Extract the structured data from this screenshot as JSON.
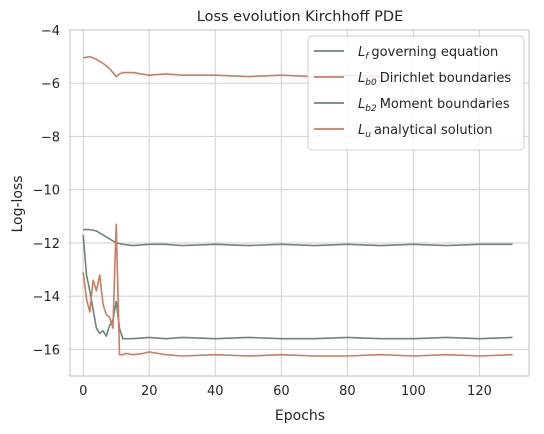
{
  "chart_data": {
    "type": "line",
    "title": "Loss evolution Kirchhoff PDE",
    "xlabel": "Epochs",
    "ylabel": "Log-loss",
    "xlim": [
      -4,
      135
    ],
    "ylim": [
      -17,
      -4
    ],
    "xticks": [
      0,
      20,
      40,
      60,
      80,
      100,
      120
    ],
    "yticks": [
      -16,
      -14,
      -12,
      -10,
      -8,
      -6,
      -4
    ],
    "xtick_labels": [
      "0",
      "20",
      "40",
      "60",
      "80",
      "100",
      "120"
    ],
    "ytick_labels": [
      "−16",
      "−14",
      "−12",
      "−10",
      "−8",
      "−6",
      "−4"
    ],
    "grid": true,
    "legend_position": "top-right",
    "series": [
      {
        "name": "governing equation",
        "legend_symbol": "L",
        "legend_sub": "f",
        "color": "#6b8778",
        "x": [
          0,
          2,
          4,
          6,
          8,
          10,
          12,
          15,
          20,
          25,
          30,
          40,
          50,
          60,
          70,
          80,
          90,
          100,
          110,
          120,
          130
        ],
        "values": [
          -11.5,
          -11.5,
          -11.55,
          -11.7,
          -11.85,
          -12.0,
          -12.05,
          -12.1,
          -12.05,
          -12.05,
          -12.1,
          -12.05,
          -12.1,
          -12.05,
          -12.1,
          -12.05,
          -12.1,
          -12.05,
          -12.1,
          -12.05,
          -12.05
        ]
      },
      {
        "name": "Dirichlet boundaries",
        "legend_symbol": "L",
        "legend_sub": "b0",
        "color": "#cf7b5f",
        "x": [
          0,
          2,
          4,
          6,
          8,
          9,
          10,
          11,
          12,
          15,
          20,
          25,
          30,
          40,
          50,
          60,
          70,
          80,
          90,
          100,
          110,
          120,
          130
        ],
        "values": [
          -5.05,
          -5.0,
          -5.1,
          -5.25,
          -5.45,
          -5.6,
          -5.75,
          -5.65,
          -5.6,
          -5.6,
          -5.7,
          -5.65,
          -5.7,
          -5.7,
          -5.75,
          -5.7,
          -5.75,
          -5.7,
          -5.75,
          -5.7,
          -5.75,
          -5.7,
          -5.75
        ]
      },
      {
        "name": "Moment boundaries",
        "legend_symbol": "L",
        "legend_sub": "b2",
        "color": "#6b8778",
        "x": [
          0,
          1,
          2,
          3,
          4,
          5,
          6,
          7,
          8,
          9,
          10,
          11,
          12,
          13,
          15,
          20,
          25,
          30,
          40,
          50,
          60,
          70,
          80,
          90,
          100,
          110,
          120,
          130
        ],
        "values": [
          -11.7,
          -13.2,
          -13.8,
          -14.5,
          -15.2,
          -15.4,
          -15.3,
          -15.5,
          -15.1,
          -14.9,
          -14.2,
          -15.2,
          -15.6,
          -15.6,
          -15.6,
          -15.55,
          -15.6,
          -15.55,
          -15.6,
          -15.55,
          -15.6,
          -15.6,
          -15.55,
          -15.6,
          -15.6,
          -15.55,
          -15.6,
          -15.55
        ]
      },
      {
        "name": "analytical solution",
        "legend_symbol": "L",
        "legend_sub": "u",
        "color": "#cf7b5f",
        "x": [
          0,
          1,
          2,
          3,
          4,
          5,
          6,
          7,
          8,
          9,
          10,
          11,
          12,
          13,
          15,
          18,
          20,
          25,
          30,
          40,
          50,
          60,
          70,
          80,
          90,
          100,
          110,
          120,
          130
        ],
        "values": [
          -13.1,
          -14.1,
          -14.6,
          -13.4,
          -13.8,
          -13.2,
          -14.3,
          -14.7,
          -14.8,
          -15.2,
          -11.3,
          -16.2,
          -16.2,
          -16.15,
          -16.2,
          -16.15,
          -16.1,
          -16.2,
          -16.25,
          -16.2,
          -16.25,
          -16.2,
          -16.25,
          -16.25,
          -16.2,
          -16.25,
          -16.2,
          -16.25,
          -16.2
        ]
      }
    ]
  }
}
